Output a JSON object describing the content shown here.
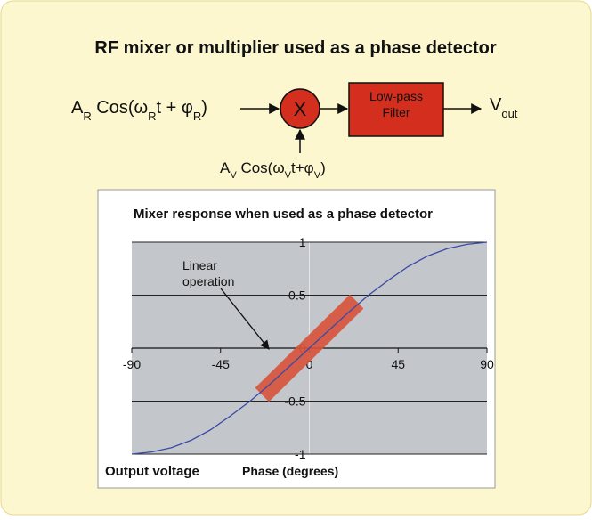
{
  "title": "RF mixer or multiplier used as a phase detector",
  "diagram": {
    "input_r": [
      {
        "text": "A"
      },
      {
        "text": "R",
        "sub": true
      },
      {
        "text": " Cos("
      },
      {
        "text": "ω"
      },
      {
        "text": "R",
        "sub": true
      },
      {
        "text": "t + "
      },
      {
        "text": "φ"
      },
      {
        "text": "R",
        "sub": true
      },
      {
        "text": ")"
      }
    ],
    "mixer": "X",
    "filter": [
      "Low-pass",
      "Filter"
    ],
    "output": [
      {
        "text": "V"
      },
      {
        "text": "out",
        "sub": true
      }
    ],
    "input_v": [
      {
        "text": "A"
      },
      {
        "text": "V",
        "sub": true
      },
      {
        "text": " Cos("
      },
      {
        "text": "ω"
      },
      {
        "text": "V",
        "sub": true
      },
      {
        "text": "t+"
      },
      {
        "text": "φ"
      },
      {
        "text": "V",
        "sub": true
      },
      {
        "text": ")"
      }
    ]
  },
  "chart_data": {
    "type": "line",
    "title": "Mixer response when used as a phase detector",
    "xlabel": "Phase (degrees)",
    "ylabel": "Output voltage",
    "xlim": [
      -90,
      90
    ],
    "ylim": [
      -1,
      1
    ],
    "xticks": [
      -90,
      -45,
      0,
      45,
      90
    ],
    "yticks": [
      1,
      0.5,
      0,
      -0.5,
      -1
    ],
    "grid": true,
    "x": [
      -90,
      -80,
      -70,
      -60,
      -50,
      -40,
      -30,
      -20,
      -10,
      0,
      10,
      20,
      30,
      40,
      50,
      60,
      70,
      80,
      90
    ],
    "series": [
      {
        "color": "#3a4aa6",
        "values": [
          -1,
          -0.98,
          -0.94,
          -0.87,
          -0.77,
          -0.64,
          -0.5,
          -0.34,
          -0.17,
          0,
          0.17,
          0.34,
          0.5,
          0.64,
          0.77,
          0.87,
          0.94,
          0.98,
          1
        ]
      }
    ],
    "highlight": {
      "x": [
        -24,
        24
      ],
      "y": [
        -0.44,
        0.44
      ],
      "color": "#d9533a"
    },
    "annotation": [
      "Linear",
      "operation"
    ]
  }
}
